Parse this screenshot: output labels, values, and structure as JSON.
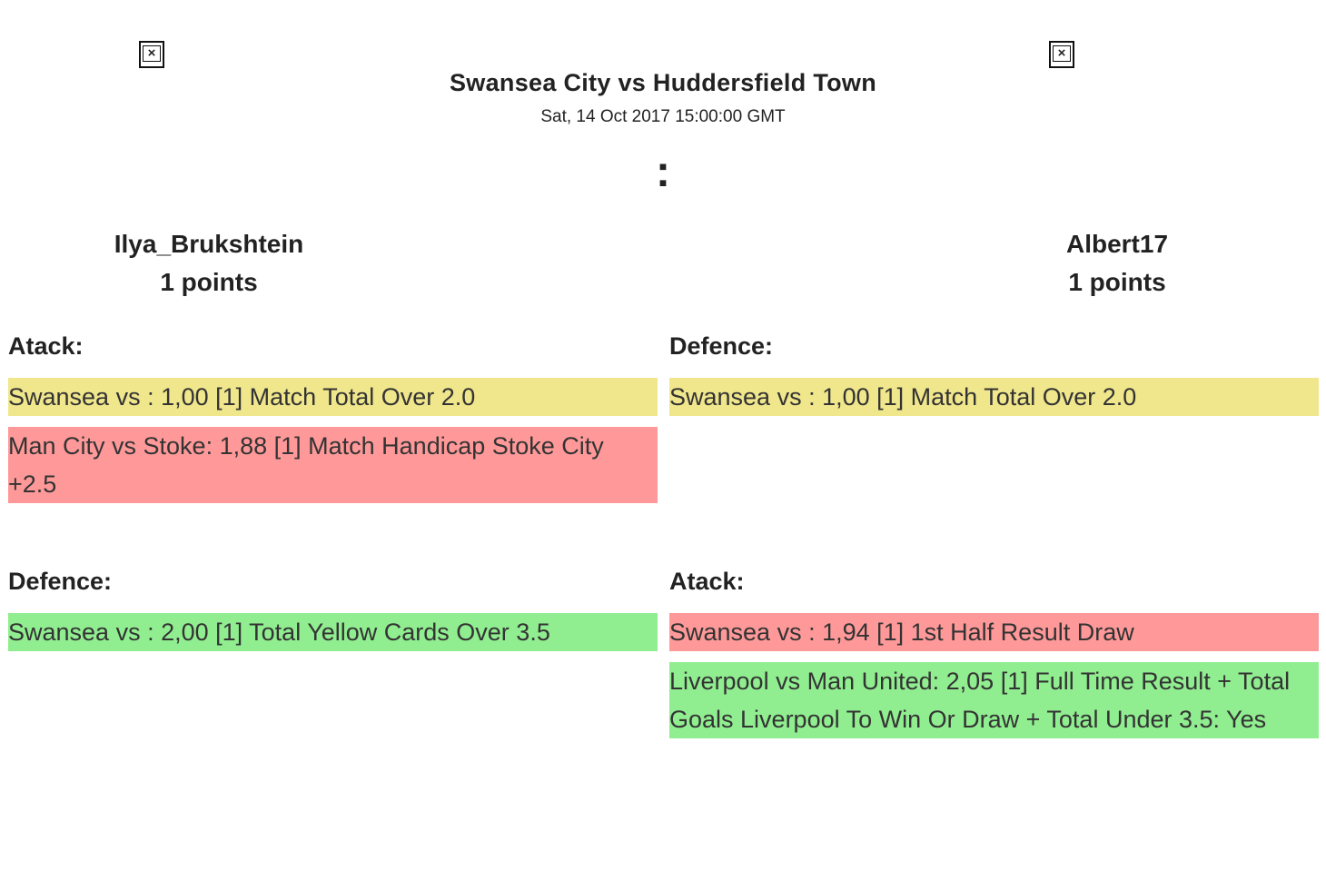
{
  "match": {
    "title": "Swansea City vs Huddersfield Town",
    "date": "Sat, 14 Oct 2017 15:00:00 GMT",
    "score": ":"
  },
  "players": [
    {
      "name": "Ilya_Brukshtein",
      "points": "1 points"
    },
    {
      "name": "Albert17",
      "points": "1 points"
    }
  ],
  "left": {
    "atack_title": "Atack:",
    "atack_bets": [
      {
        "text": "Swansea vs : 1,00 [1] Match Total Over 2.0",
        "status_color": "#f0e68c"
      },
      {
        "text": "Man City vs Stoke: 1,88 [1] Match Handicap Stoke City +2.5",
        "status_color": "#ff9999"
      }
    ],
    "defence_title": "Defence:",
    "defence_bets": [
      {
        "text": "Swansea vs : 2,00 [1] Total Yellow Cards Over 3.5",
        "status_color": "#90ee90"
      }
    ]
  },
  "right": {
    "defence_title": "Defence:",
    "defence_bets": [
      {
        "text": "Swansea vs : 1,00 [1] Match Total Over 2.0",
        "status_color": "#f0e68c"
      }
    ],
    "atack_title": "Atack:",
    "atack_bets": [
      {
        "text": "Swansea vs : 1,94 [1] 1st Half Result Draw",
        "status_color": "#ff9999"
      },
      {
        "text": "Liverpool vs Man United: 2,05 [1] Full Time Result + Total Goals Liverpool To Win Or Draw + Total Under 3.5: Yes",
        "status_color": "#90ee90"
      }
    ]
  }
}
